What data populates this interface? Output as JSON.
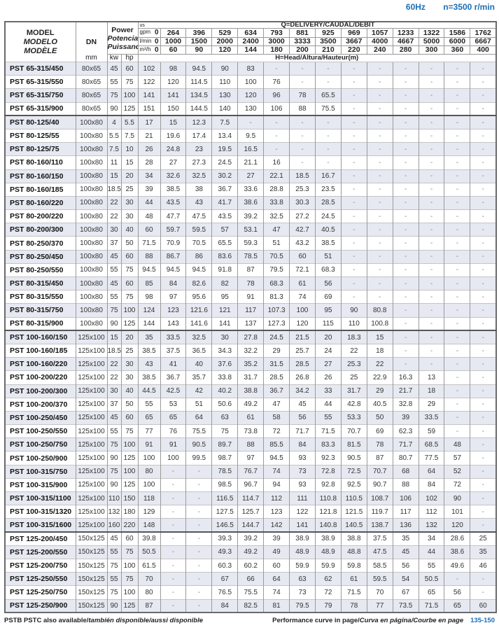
{
  "header_info": {
    "frequency": "60Hz",
    "speed": "n=3500 r/min"
  },
  "table_header": {
    "model": [
      "MODEL",
      "MODELO",
      "MODÈLE"
    ],
    "dn": "DN",
    "dn_unit": "mm",
    "power": [
      "Power",
      "Potencia",
      "Puissance"
    ],
    "kw": "kw",
    "hp": "hp",
    "q_title": "Q=DELIVERY/CAUDAL/DÉBIT",
    "unit_us": "us",
    "unit_gpm": "gpm",
    "unit_lmin": "l/min",
    "unit_m3h": "m³/h",
    "head_label": "H=Head/Altura/Hauteur(m)",
    "gpm": [
      "0",
      "264",
      "396",
      "529",
      "634",
      "793",
      "881",
      "925",
      "969",
      "1057",
      "1233",
      "1322",
      "1586",
      "1762"
    ],
    "lmin": [
      "0",
      "1000",
      "1500",
      "2000",
      "2400",
      "3000",
      "3333",
      "3500",
      "3667",
      "4000",
      "4667",
      "5000",
      "6000",
      "6667"
    ],
    "m3h": [
      "0",
      "60",
      "90",
      "120",
      "144",
      "180",
      "200",
      "210",
      "220",
      "240",
      "280",
      "300",
      "360",
      "400"
    ]
  },
  "rows": [
    [
      "PST 65-315/450",
      "80x65",
      "45",
      "60",
      "102",
      "98",
      "94.5",
      "90",
      "83",
      "-",
      "-",
      "-",
      "-",
      "-",
      "-",
      "-",
      "-",
      "-"
    ],
    [
      "PST 65-315/550",
      "80x65",
      "55",
      "75",
      "122",
      "120",
      "114.5",
      "110",
      "100",
      "76",
      "-",
      "-",
      "-",
      "-",
      "-",
      "-",
      "-",
      "-"
    ],
    [
      "PST 65-315/750",
      "80x65",
      "75",
      "100",
      "141",
      "141",
      "134.5",
      "130",
      "120",
      "96",
      "78",
      "65.5",
      "-",
      "-",
      "-",
      "-",
      "-",
      "-"
    ],
    [
      "PST 65-315/900",
      "80x65",
      "90",
      "125",
      "151",
      "150",
      "144.5",
      "140",
      "130",
      "106",
      "88",
      "75.5",
      "-",
      "-",
      "-",
      "-",
      "-",
      "-"
    ],
    [
      "PST 80-125/40",
      "100x80",
      "4",
      "5.5",
      "17",
      "15",
      "12.3",
      "7.5",
      "-",
      "-",
      "-",
      "-",
      "-",
      "-",
      "-",
      "-",
      "-",
      "-"
    ],
    [
      "PST 80-125/55",
      "100x80",
      "5.5",
      "7.5",
      "21",
      "19.6",
      "17.4",
      "13.4",
      "9.5",
      "-",
      "-",
      "-",
      "-",
      "-",
      "-",
      "-",
      "-",
      "-"
    ],
    [
      "PST 80-125/75",
      "100x80",
      "7.5",
      "10",
      "26",
      "24.8",
      "23",
      "19.5",
      "16.5",
      "-",
      "-",
      "-",
      "-",
      "-",
      "-",
      "-",
      "-",
      "-"
    ],
    [
      "PST 80-160/110",
      "100x80",
      "11",
      "15",
      "28",
      "27",
      "27.3",
      "24.5",
      "21.1",
      "16",
      "-",
      "-",
      "-",
      "-",
      "-",
      "-",
      "-",
      "-"
    ],
    [
      "PST 80-160/150",
      "100x80",
      "15",
      "20",
      "34",
      "32.6",
      "32.5",
      "30.2",
      "27",
      "22.1",
      "18.5",
      "16.7",
      "-",
      "-",
      "-",
      "-",
      "-",
      "-"
    ],
    [
      "PST 80-160/185",
      "100x80",
      "18.5",
      "25",
      "39",
      "38.5",
      "38",
      "36.7",
      "33.6",
      "28.8",
      "25.3",
      "23.5",
      "-",
      "-",
      "-",
      "-",
      "-",
      "-"
    ],
    [
      "PST 80-160/220",
      "100x80",
      "22",
      "30",
      "44",
      "43.5",
      "43",
      "41.7",
      "38.6",
      "33.8",
      "30.3",
      "28.5",
      "-",
      "-",
      "-",
      "-",
      "-",
      "-"
    ],
    [
      "PST 80-200/220",
      "100x80",
      "22",
      "30",
      "48",
      "47.7",
      "47.5",
      "43.5",
      "39.2",
      "32.5",
      "27.2",
      "24.5",
      "-",
      "-",
      "-",
      "-",
      "-",
      "-"
    ],
    [
      "PST 80-200/300",
      "100x80",
      "30",
      "40",
      "60",
      "59.7",
      "59.5",
      "57",
      "53.1",
      "47",
      "42.7",
      "40.5",
      "-",
      "-",
      "-",
      "-",
      "-",
      "-"
    ],
    [
      "PST 80-250/370",
      "100x80",
      "37",
      "50",
      "71.5",
      "70.9",
      "70.5",
      "65.5",
      "59.3",
      "51",
      "43.2",
      "38.5",
      "-",
      "-",
      "-",
      "-",
      "-",
      "-"
    ],
    [
      "PST 80-250/450",
      "100x80",
      "45",
      "60",
      "88",
      "86.7",
      "86",
      "83.6",
      "78.5",
      "70.5",
      "60",
      "51",
      "-",
      "-",
      "-",
      "-",
      "-",
      "-"
    ],
    [
      "PST 80-250/550",
      "100x80",
      "55",
      "75",
      "94.5",
      "94.5",
      "94.5",
      "91.8",
      "87",
      "79.5",
      "72.1",
      "68.3",
      "-",
      "-",
      "-",
      "-",
      "-",
      "-"
    ],
    [
      "PST 80-315/450",
      "100x80",
      "45",
      "60",
      "85",
      "84",
      "82.6",
      "82",
      "78",
      "68.3",
      "61",
      "56",
      "-",
      "-",
      "-",
      "-",
      "-",
      "-"
    ],
    [
      "PST 80-315/550",
      "100x80",
      "55",
      "75",
      "98",
      "97",
      "95.6",
      "95",
      "91",
      "81.3",
      "74",
      "69",
      "-",
      "-",
      "-",
      "-",
      "-",
      "-"
    ],
    [
      "PST 80-315/750",
      "100x80",
      "75",
      "100",
      "124",
      "123",
      "121.6",
      "121",
      "117",
      "107.3",
      "100",
      "95",
      "90",
      "80.8",
      "-",
      "-",
      "-",
      "-"
    ],
    [
      "PST 80-315/900",
      "100x80",
      "90",
      "125",
      "144",
      "143",
      "141.6",
      "141",
      "137",
      "127.3",
      "120",
      "115",
      "110",
      "100.8",
      "-",
      "-",
      "-",
      "-"
    ],
    [
      "PST 100-160/150",
      "125x100",
      "15",
      "20",
      "35",
      "33.5",
      "32.5",
      "30",
      "27.8",
      "24.5",
      "21.5",
      "20",
      "18.3",
      "15",
      "-",
      "-",
      "-",
      "-"
    ],
    [
      "PST 100-160/185",
      "125x100",
      "18.5",
      "25",
      "38.5",
      "37.5",
      "36.5",
      "34.3",
      "32.2",
      "29",
      "25.7",
      "24",
      "22",
      "18",
      "-",
      "-",
      "-",
      "-"
    ],
    [
      "PST 100-160/220",
      "125x100",
      "22",
      "30",
      "43",
      "41",
      "40",
      "37.6",
      "35.2",
      "31.5",
      "28.5",
      "27",
      "25.3",
      "22",
      "-",
      "-",
      "-",
      "-"
    ],
    [
      "PST 100-200/220",
      "125x100",
      "22",
      "30",
      "38.5",
      "36.7",
      "35.7",
      "33.8",
      "31.7",
      "28.5",
      "26.8",
      "26",
      "25",
      "22.9",
      "16.3",
      "13",
      "-",
      "-"
    ],
    [
      "PST 100-200/300",
      "125x100",
      "30",
      "40",
      "44.5",
      "42.5",
      "42",
      "40.2",
      "38.8",
      "36.7",
      "34.2",
      "33",
      "31.7",
      "29",
      "21.7",
      "18",
      "-",
      "-"
    ],
    [
      "PST 100-200/370",
      "125x100",
      "37",
      "50",
      "55",
      "53",
      "51",
      "50.6",
      "49.2",
      "47",
      "45",
      "44",
      "42.8",
      "40.5",
      "32.8",
      "29",
      "-",
      "-"
    ],
    [
      "PST 100-250/450",
      "125x100",
      "45",
      "60",
      "65",
      "65",
      "64",
      "63",
      "61",
      "58",
      "56",
      "55",
      "53.3",
      "50",
      "39",
      "33.5",
      "-",
      "-"
    ],
    [
      "PST 100-250/550",
      "125x100",
      "55",
      "75",
      "77",
      "76",
      "75.5",
      "75",
      "73.8",
      "72",
      "71.7",
      "71.5",
      "70.7",
      "69",
      "62.3",
      "59",
      "-",
      "-"
    ],
    [
      "PST 100-250/750",
      "125x100",
      "75",
      "100",
      "91",
      "91",
      "90.5",
      "89.7",
      "88",
      "85.5",
      "84",
      "83.3",
      "81.5",
      "78",
      "71.7",
      "68.5",
      "48",
      "-"
    ],
    [
      "PST 100-250/900",
      "125x100",
      "90",
      "125",
      "100",
      "100",
      "99.5",
      "98.7",
      "97",
      "94.5",
      "93",
      "92.3",
      "90.5",
      "87",
      "80.7",
      "77.5",
      "57",
      "-"
    ],
    [
      "PST 100-315/750",
      "125x100",
      "75",
      "100",
      "80",
      "-",
      "-",
      "78.5",
      "76.7",
      "74",
      "73",
      "72.8",
      "72.5",
      "70.7",
      "68",
      "64",
      "52",
      "-"
    ],
    [
      "PST 100-315/900",
      "125x100",
      "90",
      "125",
      "100",
      "-",
      "-",
      "98.5",
      "96.7",
      "94",
      "93",
      "92.8",
      "92.5",
      "90.7",
      "88",
      "84",
      "72",
      "-"
    ],
    [
      "PST 100-315/1100",
      "125x100",
      "110",
      "150",
      "118",
      "-",
      "-",
      "116.5",
      "114.7",
      "112",
      "111",
      "110.8",
      "110.5",
      "108.7",
      "106",
      "102",
      "90",
      "-"
    ],
    [
      "PST 100-315/1320",
      "125x100",
      "132",
      "180",
      "129",
      "-",
      "-",
      "127.5",
      "125.7",
      "123",
      "122",
      "121.8",
      "121.5",
      "119.7",
      "117",
      "112",
      "101",
      "-"
    ],
    [
      "PST 100-315/1600",
      "125x100",
      "160",
      "220",
      "148",
      "-",
      "-",
      "146.5",
      "144.7",
      "142",
      "141",
      "140.8",
      "140.5",
      "138.7",
      "136",
      "132",
      "120",
      "-"
    ],
    [
      "PST 125-200/450",
      "150x125",
      "45",
      "60",
      "39.8",
      "-",
      "-",
      "39.3",
      "39.2",
      "39",
      "38.9",
      "38.9",
      "38.8",
      "37.5",
      "35",
      "34",
      "28.6",
      "25"
    ],
    [
      "PST 125-200/550",
      "150x125",
      "55",
      "75",
      "50.5",
      "-",
      "-",
      "49.3",
      "49.2",
      "49",
      "48.9",
      "48.9",
      "48.8",
      "47.5",
      "45",
      "44",
      "38.6",
      "35"
    ],
    [
      "PST 125-200/750",
      "150x125",
      "75",
      "100",
      "61.5",
      "-",
      "-",
      "60.3",
      "60.2",
      "60",
      "59.9",
      "59.9",
      "59.8",
      "58.5",
      "56",
      "55",
      "49.6",
      "46"
    ],
    [
      "PST 125-250/550",
      "150x125",
      "55",
      "75",
      "70",
      "-",
      "-",
      "67",
      "66",
      "64",
      "63",
      "62",
      "61",
      "59.5",
      "54",
      "50.5",
      "-",
      "-"
    ],
    [
      "PST 125-250/750",
      "150x125",
      "75",
      "100",
      "80",
      "-",
      "-",
      "76.5",
      "75.5",
      "74",
      "73",
      "72",
      "71.5",
      "70",
      "67",
      "65",
      "56",
      "-"
    ],
    [
      "PST 125-250/900",
      "150x125",
      "90",
      "125",
      "87",
      "-",
      "-",
      "84",
      "82.5",
      "81",
      "79.5",
      "79",
      "78",
      "77",
      "73.5",
      "71.5",
      "65",
      "60"
    ]
  ],
  "footer": {
    "left_bold": "PSTB PSTC also available/",
    "left_italic": "también disponible/aussi disponible",
    "right_bold": "Performance curve in page/",
    "right_italic": "Curva en página/Courbe en page",
    "page_range": "135-150"
  },
  "colors": {
    "accent": "#1c6fb5",
    "row_shade": "#e6e9f1"
  }
}
